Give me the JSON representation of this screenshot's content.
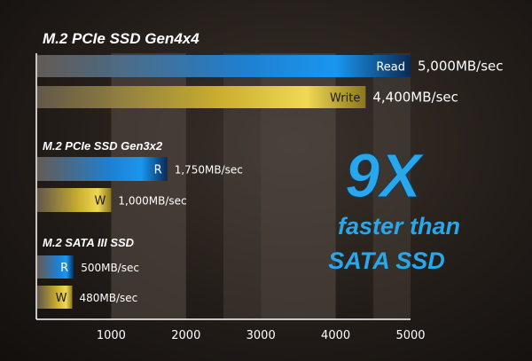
{
  "chart_data": {
    "type": "bar",
    "orientation": "horizontal",
    "xlim": [
      0,
      5000
    ],
    "ticks": [
      1000,
      2000,
      3000,
      4000,
      5000
    ],
    "grid": "alternating vertical bands",
    "groups": [
      {
        "title": "M.2 PCIe SSD Gen4x4",
        "bars": [
          {
            "label": "Read",
            "value": 5000,
            "value_label": "5,000MB/sec",
            "kind": "read"
          },
          {
            "label": "Write",
            "value": 4400,
            "value_label": "4,400MB/sec",
            "kind": "write"
          }
        ]
      },
      {
        "title": "M.2 PCIe SSD Gen3x2",
        "bars": [
          {
            "label": "R",
            "value": 1750,
            "value_label": "1,750MB/sec",
            "kind": "read"
          },
          {
            "label": "W",
            "value": 1000,
            "value_label": "1,000MB/sec",
            "kind": "write"
          }
        ]
      },
      {
        "title": "M.2 SATA III SSD",
        "bars": [
          {
            "label": "R",
            "value": 500,
            "value_label": "500MB/sec",
            "kind": "read"
          },
          {
            "label": "W",
            "value": 480,
            "value_label": "480MB/sec",
            "kind": "write"
          }
        ]
      }
    ],
    "annotation": {
      "big": "9X",
      "line1": "faster than",
      "line2": "SATA SSD"
    }
  },
  "colors": {
    "read": "#1a8fe0",
    "write": "#e8cc45",
    "accent": "#2aa7ea",
    "band": "#5a4f47"
  }
}
